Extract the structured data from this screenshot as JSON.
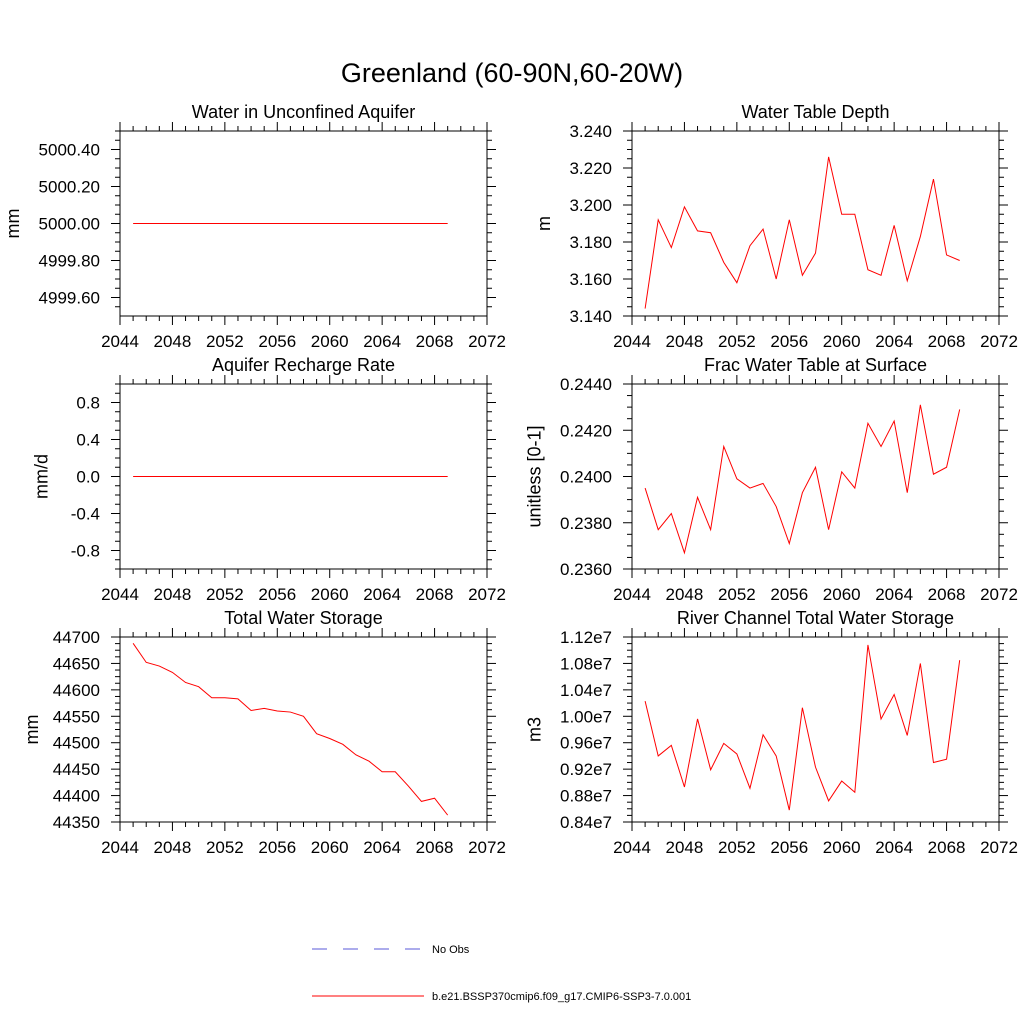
{
  "title": "Greenland (60-90N,60-20W)",
  "legend": {
    "items": [
      {
        "label": "No Obs",
        "color": "#5a5ad8",
        "dash": "dashed"
      },
      {
        "label": "b.e21.BSSP370cmip6.f09_g17.CMIP6-SSP3-7.0.001",
        "color": "#ff0000",
        "dash": "solid"
      }
    ]
  },
  "chart_data": [
    {
      "type": "line",
      "title": "Water in Unconfined Aquifer",
      "ylabel": "mm",
      "xlim": [
        2044,
        2072
      ],
      "xticks": [
        2044,
        2048,
        2052,
        2056,
        2060,
        2064,
        2068,
        2072
      ],
      "ylim": [
        4999.5,
        5000.5
      ],
      "yticks": [
        4999.6,
        4999.8,
        5000.0,
        5000.2,
        5000.4
      ],
      "yticklabels": [
        "4999.60",
        "4999.80",
        "5000.00",
        "5000.20",
        "5000.40"
      ],
      "x": [
        2045,
        2046,
        2047,
        2048,
        2049,
        2050,
        2051,
        2052,
        2053,
        2054,
        2055,
        2056,
        2057,
        2058,
        2059,
        2060,
        2061,
        2062,
        2063,
        2064,
        2065,
        2066,
        2067,
        2068,
        2069
      ],
      "series": [
        {
          "color": "#ff0000",
          "values": [
            5000,
            5000,
            5000,
            5000,
            5000,
            5000,
            5000,
            5000,
            5000,
            5000,
            5000,
            5000,
            5000,
            5000,
            5000,
            5000,
            5000,
            5000,
            5000,
            5000,
            5000,
            5000,
            5000,
            5000,
            5000
          ]
        }
      ]
    },
    {
      "type": "line",
      "title": "Water Table Depth",
      "ylabel": "m",
      "xlim": [
        2044,
        2072
      ],
      "xticks": [
        2044,
        2048,
        2052,
        2056,
        2060,
        2064,
        2068,
        2072
      ],
      "ylim": [
        3.14,
        3.24
      ],
      "yticks": [
        3.14,
        3.16,
        3.18,
        3.2,
        3.22,
        3.24
      ],
      "yticklabels": [
        "3.140",
        "3.160",
        "3.180",
        "3.200",
        "3.220",
        "3.240"
      ],
      "x": [
        2045,
        2046,
        2047,
        2048,
        2049,
        2050,
        2051,
        2052,
        2053,
        2054,
        2055,
        2056,
        2057,
        2058,
        2059,
        2060,
        2061,
        2062,
        2063,
        2064,
        2065,
        2066,
        2067,
        2068,
        2069
      ],
      "series": [
        {
          "color": "#ff0000",
          "values": [
            3.144,
            3.192,
            3.177,
            3.199,
            3.186,
            3.185,
            3.169,
            3.158,
            3.178,
            3.187,
            3.16,
            3.192,
            3.162,
            3.174,
            3.226,
            3.195,
            3.195,
            3.165,
            3.162,
            3.189,
            3.159,
            3.183,
            3.214,
            3.173,
            3.17
          ]
        }
      ]
    },
    {
      "type": "line",
      "title": "Aquifer Recharge Rate",
      "ylabel": "mm/d",
      "xlim": [
        2044,
        2072
      ],
      "xticks": [
        2044,
        2048,
        2052,
        2056,
        2060,
        2064,
        2068,
        2072
      ],
      "ylim": [
        -1.0,
        1.0
      ],
      "yticks": [
        -0.8,
        -0.4,
        0.0,
        0.4,
        0.8
      ],
      "yticklabels": [
        "-0.8",
        "-0.4",
        "0.0",
        "0.4",
        "0.8"
      ],
      "x": [
        2045,
        2046,
        2047,
        2048,
        2049,
        2050,
        2051,
        2052,
        2053,
        2054,
        2055,
        2056,
        2057,
        2058,
        2059,
        2060,
        2061,
        2062,
        2063,
        2064,
        2065,
        2066,
        2067,
        2068,
        2069
      ],
      "series": [
        {
          "color": "#ff0000",
          "values": [
            0,
            0,
            0,
            0,
            0,
            0,
            0,
            0,
            0,
            0,
            0,
            0,
            0,
            0,
            0,
            0,
            0,
            0,
            0,
            0,
            0,
            0,
            0,
            0,
            0
          ]
        }
      ]
    },
    {
      "type": "line",
      "title": "Frac Water Table at Surface",
      "ylabel": "unitless [0-1]",
      "xlim": [
        2044,
        2072
      ],
      "xticks": [
        2044,
        2048,
        2052,
        2056,
        2060,
        2064,
        2068,
        2072
      ],
      "ylim": [
        0.236,
        0.244
      ],
      "yticks": [
        0.236,
        0.238,
        0.24,
        0.242,
        0.244
      ],
      "yticklabels": [
        "0.2360",
        "0.2380",
        "0.2400",
        "0.2420",
        "0.2440"
      ],
      "x": [
        2045,
        2046,
        2047,
        2048,
        2049,
        2050,
        2051,
        2052,
        2053,
        2054,
        2055,
        2056,
        2057,
        2058,
        2059,
        2060,
        2061,
        2062,
        2063,
        2064,
        2065,
        2066,
        2067,
        2068,
        2069
      ],
      "series": [
        {
          "color": "#ff0000",
          "values": [
            0.2395,
            0.2377,
            0.2384,
            0.2367,
            0.2391,
            0.2377,
            0.2413,
            0.2399,
            0.2395,
            0.2397,
            0.2387,
            0.2371,
            0.2393,
            0.2404,
            0.2377,
            0.2402,
            0.2395,
            0.2423,
            0.2413,
            0.2424,
            0.2393,
            0.2431,
            0.2401,
            0.2404,
            0.2429
          ]
        }
      ]
    },
    {
      "type": "line",
      "title": "Total Water Storage",
      "ylabel": "mm",
      "xlim": [
        2044,
        2072
      ],
      "xticks": [
        2044,
        2048,
        2052,
        2056,
        2060,
        2064,
        2068,
        2072
      ],
      "ylim": [
        44350,
        44700
      ],
      "yticks": [
        44350,
        44400,
        44450,
        44500,
        44550,
        44600,
        44650,
        44700
      ],
      "yticklabels": [
        "44350",
        "44400",
        "44450",
        "44500",
        "44550",
        "44600",
        "44650",
        "44700"
      ],
      "x": [
        2045,
        2046,
        2047,
        2048,
        2049,
        2050,
        2051,
        2052,
        2053,
        2054,
        2055,
        2056,
        2057,
        2058,
        2059,
        2060,
        2061,
        2062,
        2063,
        2064,
        2065,
        2066,
        2067,
        2068,
        2069
      ],
      "series": [
        {
          "color": "#ff0000",
          "values": [
            44688,
            44652,
            44645,
            44633,
            44614,
            44606,
            44585,
            44585,
            44583,
            44561,
            44565,
            44560,
            44558,
            44550,
            44517,
            44508,
            44497,
            44477,
            44465,
            44445,
            44445,
            44418,
            44389,
            44395,
            44363
          ]
        }
      ]
    },
    {
      "type": "line",
      "title": "River Channel Total Water Storage",
      "ylabel": "m3",
      "xlim": [
        2044,
        2072
      ],
      "xticks": [
        2044,
        2048,
        2052,
        2056,
        2060,
        2064,
        2068,
        2072
      ],
      "ylim": [
        8400000,
        11200000
      ],
      "yticks": [
        8400000,
        8800000,
        9200000,
        9600000,
        10000000,
        10400000,
        10800000,
        11200000
      ],
      "yticklabels": [
        "0.84e7",
        "0.88e7",
        "0.92e7",
        "0.96e7",
        "1.00e7",
        "1.04e7",
        "1.08e7",
        "1.12e7"
      ],
      "x": [
        2045,
        2046,
        2047,
        2048,
        2049,
        2050,
        2051,
        2052,
        2053,
        2054,
        2055,
        2056,
        2057,
        2058,
        2059,
        2060,
        2061,
        2062,
        2063,
        2064,
        2065,
        2066,
        2067,
        2068,
        2069
      ],
      "series": [
        {
          "color": "#ff0000",
          "values": [
            10230000,
            9400000,
            9560000,
            8930000,
            9960000,
            9190000,
            9590000,
            9430000,
            8910000,
            9720000,
            9400000,
            8580000,
            10130000,
            9230000,
            8720000,
            9020000,
            8850000,
            11080000,
            9960000,
            10330000,
            9710000,
            10800000,
            9300000,
            9350000,
            10850000
          ]
        }
      ]
    }
  ]
}
